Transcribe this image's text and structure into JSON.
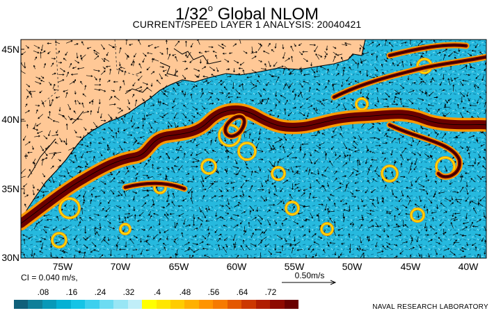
{
  "title_main": "1/32",
  "title_deg": "o",
  "title_rest": " Global NLOM",
  "subtitle": "CURRENT/SPEED LAYER 1 ANALYSIS: 20040421",
  "lat_labels": [
    "45N",
    "40N",
    "35N",
    "30N"
  ],
  "lon_labels": [
    "75W",
    "70W",
    "65W",
    "60W",
    "55W",
    "50W",
    "45W",
    "40W"
  ],
  "ci_text": "CI = 0.040 m/s,",
  "ref_vector_label": "0.50m/s",
  "colorbar": {
    "tick_labels": [
      ".08",
      ".16",
      ".24",
      ".32",
      ".4",
      ".48",
      ".56",
      ".64",
      ".72"
    ],
    "colors": [
      "#10607a",
      "#0f7f99",
      "#0899b8",
      "#06b1d4",
      "#14c4e6",
      "#3dd0ee",
      "#6cdcf2",
      "#98e6f5",
      "#c0eef8",
      "#ffff00",
      "#ffe600",
      "#ffcc00",
      "#ffb000",
      "#ff9400",
      "#f67a00",
      "#e45800",
      "#cc3800",
      "#b01e00",
      "#8e0a00",
      "#6a0000"
    ]
  },
  "credit": "NAVAL RESEARCH LABORATORY",
  "colors": {
    "land": "#ffc896",
    "ocean": "#24b6dc",
    "jet": "#6a0000",
    "warm": "#ff9900"
  }
}
